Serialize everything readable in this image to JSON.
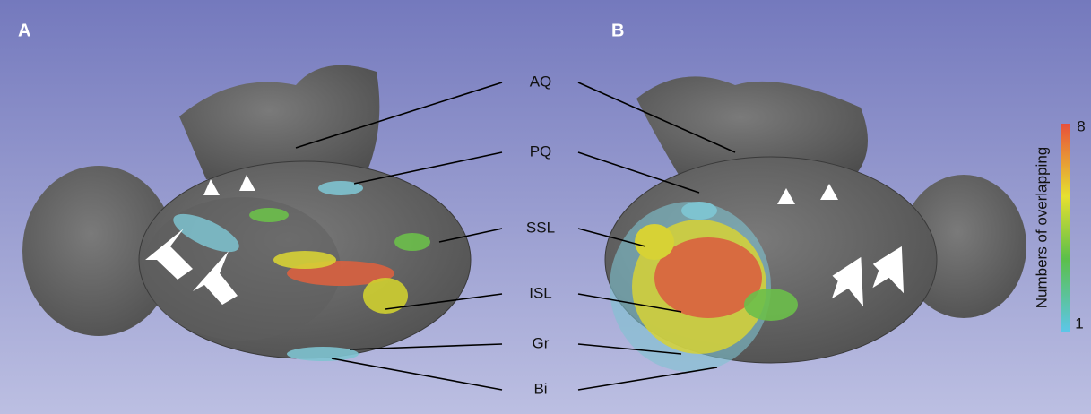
{
  "panels": [
    {
      "label": "A"
    },
    {
      "label": "B"
    }
  ],
  "structures": [
    "AQ",
    "PQ",
    "SSL",
    "ISL",
    "Gr",
    "Bi"
  ],
  "colorbar": {
    "title": "Numbers of overlapping",
    "max": "8",
    "min": "1"
  }
}
